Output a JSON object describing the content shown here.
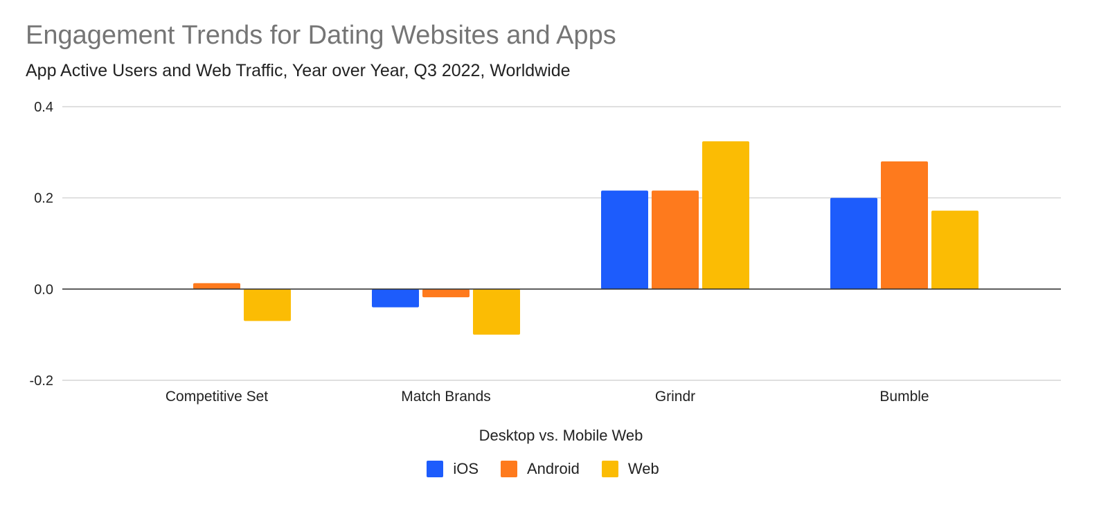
{
  "chart_data": {
    "type": "bar",
    "title": "Engagement Trends for Dating Websites and Apps",
    "subtitle": "App Active Users and Web Traffic, Year over Year, Q3 2022, Worldwide",
    "xlabel": "Desktop vs. Mobile Web",
    "ylabel": "",
    "categories": [
      "Competitive Set",
      "Match Brands",
      "Grindr",
      "Bumble"
    ],
    "series": [
      {
        "name": "iOS",
        "color": "#1d5cfc",
        "values": [
          null,
          -0.04,
          0.216,
          0.2
        ]
      },
      {
        "name": "Android",
        "color": "#fe7a1d",
        "values": [
          0.013,
          -0.018,
          0.216,
          0.28
        ]
      },
      {
        "name": "Web",
        "color": "#fbbc04",
        "values": [
          -0.07,
          -0.1,
          0.324,
          0.172
        ]
      }
    ],
    "yticks": [
      {
        "value": 0.4,
        "label": "0.4"
      },
      {
        "value": 0.2,
        "label": "0.2"
      },
      {
        "value": 0.0,
        "label": "0.0"
      },
      {
        "value": -0.2,
        "label": "-0.2"
      }
    ],
    "ylim": [
      -0.2,
      0.4
    ],
    "grid": true,
    "legend_position": "bottom"
  }
}
